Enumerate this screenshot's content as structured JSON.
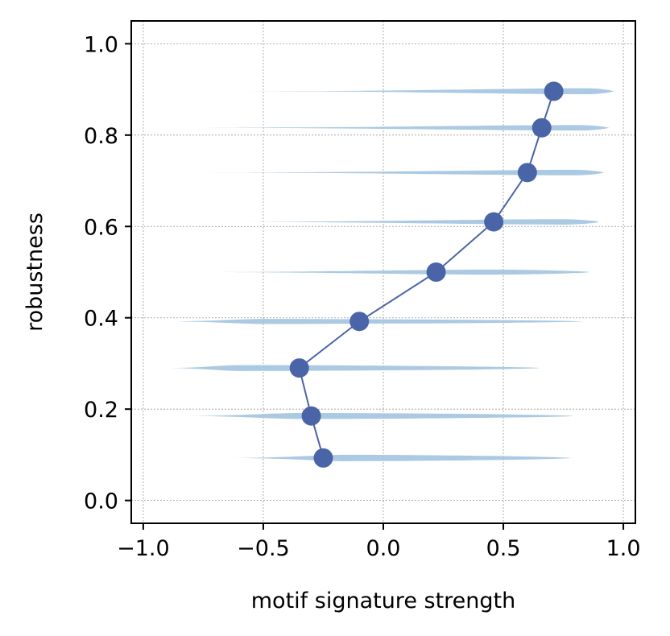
{
  "chart_data": {
    "type": "line",
    "title": "",
    "xlabel": "motif signature strength",
    "ylabel": "robustness",
    "xlim": [
      -1.05,
      1.05
    ],
    "ylim": [
      -0.05,
      1.05
    ],
    "x_ticks": [
      -1.0,
      -0.5,
      0.0,
      0.5,
      1.0
    ],
    "x_tick_labels": [
      "−1.0",
      "−0.5",
      "0.0",
      "0.5",
      "1.0"
    ],
    "y_ticks": [
      0.0,
      0.2,
      0.4,
      0.6,
      0.8,
      1.0
    ],
    "y_tick_labels": [
      "0.0",
      "0.2",
      "0.4",
      "0.6",
      "0.8",
      "1.0"
    ],
    "grid": true,
    "legend": "none",
    "colors": {
      "line": "#4a64a8",
      "violin": "#a7c6e0",
      "grid": "#999999"
    },
    "series": [
      {
        "points": [
          {
            "x": -0.25,
            "y": 0.093
          },
          {
            "x": -0.3,
            "y": 0.185
          },
          {
            "x": -0.35,
            "y": 0.29
          },
          {
            "x": -0.1,
            "y": 0.392
          },
          {
            "x": 0.22,
            "y": 0.5
          },
          {
            "x": 0.46,
            "y": 0.61
          },
          {
            "x": 0.6,
            "y": 0.718
          },
          {
            "x": 0.66,
            "y": 0.816
          },
          {
            "x": 0.71,
            "y": 0.896
          }
        ]
      }
    ],
    "violins": [
      {
        "y": 0.093,
        "min": -0.65,
        "max": 0.78,
        "mode": -0.15,
        "half_height": 0.007
      },
      {
        "y": 0.185,
        "min": -0.84,
        "max": 0.79,
        "mode": -0.35,
        "half_height": 0.0065
      },
      {
        "y": 0.29,
        "min": -0.91,
        "max": 0.65,
        "mode": -0.6,
        "half_height": 0.0065
      },
      {
        "y": 0.392,
        "min": -0.91,
        "max": 0.83,
        "mode": -0.5,
        "half_height": 0.0055
      },
      {
        "y": 0.5,
        "min": -0.88,
        "max": 0.86,
        "mode": 0.45,
        "half_height": 0.0055
      },
      {
        "y": 0.61,
        "min": -0.74,
        "max": 0.9,
        "mode": 0.75,
        "half_height": 0.006
      },
      {
        "y": 0.718,
        "min": -0.8,
        "max": 0.92,
        "mode": 0.8,
        "half_height": 0.006
      },
      {
        "y": 0.816,
        "min": -0.9,
        "max": 0.94,
        "mode": 0.82,
        "half_height": 0.006
      },
      {
        "y": 0.896,
        "min": -0.6,
        "max": 0.96,
        "mode": 0.85,
        "half_height": 0.0065
      }
    ]
  }
}
